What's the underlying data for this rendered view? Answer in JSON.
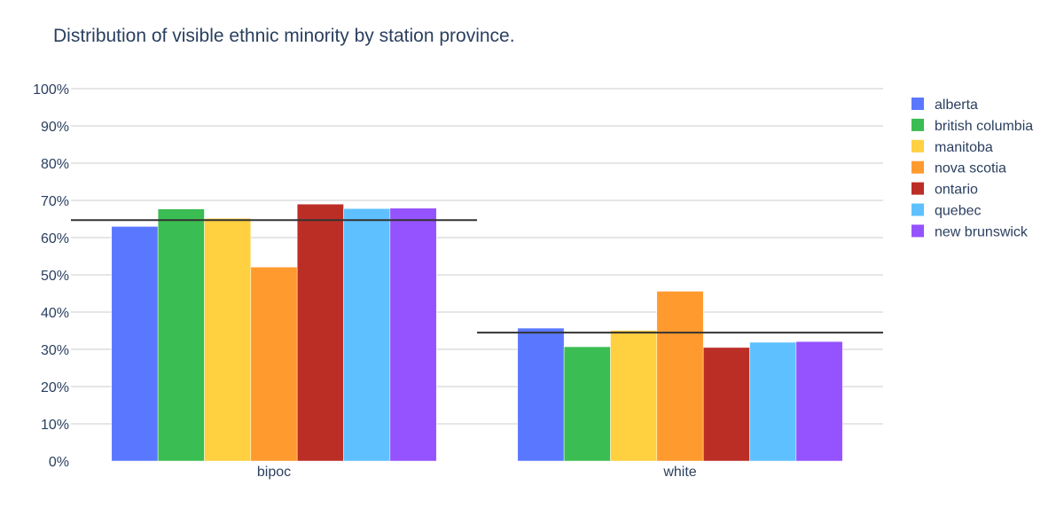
{
  "chart_data": {
    "type": "bar",
    "title": "Distribution of visible ethnic minority by station province.",
    "xlabel": "",
    "ylabel": "",
    "categories": [
      "bipoc",
      "white"
    ],
    "series": [
      {
        "name": "alberta",
        "color": "#5a78ff",
        "values": [
          63,
          35.7
        ]
      },
      {
        "name": "british columbia",
        "color": "#3abd52",
        "values": [
          67.7,
          30.7
        ]
      },
      {
        "name": "manitoba",
        "color": "#ffd040",
        "values": [
          65.2,
          35.1
        ]
      },
      {
        "name": "nova scotia",
        "color": "#ff9a2e",
        "values": [
          52.1,
          45.6
        ]
      },
      {
        "name": "ontario",
        "color": "#bb2e26",
        "values": [
          69,
          30.5
        ]
      },
      {
        "name": "quebec",
        "color": "#5ec0ff",
        "values": [
          67.8,
          31.9
        ]
      },
      {
        "name": "new brunswick",
        "color": "#9552ff",
        "values": [
          67.9,
          32.1
        ]
      }
    ],
    "reference_lines": [
      {
        "category": "bipoc",
        "value": 64.7
      },
      {
        "category": "white",
        "value": 34.5
      }
    ],
    "ylim": [
      0,
      100
    ],
    "yticks": [
      0,
      10,
      20,
      30,
      40,
      50,
      60,
      70,
      80,
      90,
      100
    ],
    "ytick_suffix": "%",
    "grid": true,
    "legend_position": "right"
  }
}
